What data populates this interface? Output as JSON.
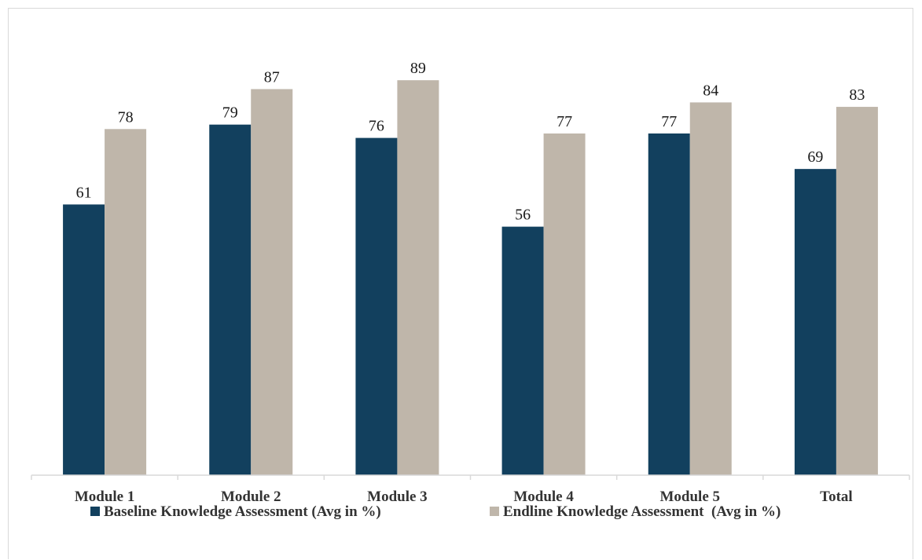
{
  "chart_data": {
    "type": "bar",
    "title": "",
    "xlabel": "",
    "ylabel": "",
    "ylim": [
      0,
      100
    ],
    "grid": false,
    "legend_position": "bottom",
    "categories": [
      "Module 1",
      "Module 2",
      "Module 3",
      "Module 4",
      "Module 5",
      "Total"
    ],
    "series": [
      {
        "name": "Baseline Knowledge Assessment (Avg in %)",
        "color": "#12405e",
        "values": [
          61,
          79,
          76,
          56,
          77,
          69
        ]
      },
      {
        "name": "Endline Knowledge Assessment  (Avg in %)",
        "color": "#bfb6aa",
        "values": [
          78,
          87,
          89,
          77,
          84,
          83
        ]
      }
    ]
  }
}
